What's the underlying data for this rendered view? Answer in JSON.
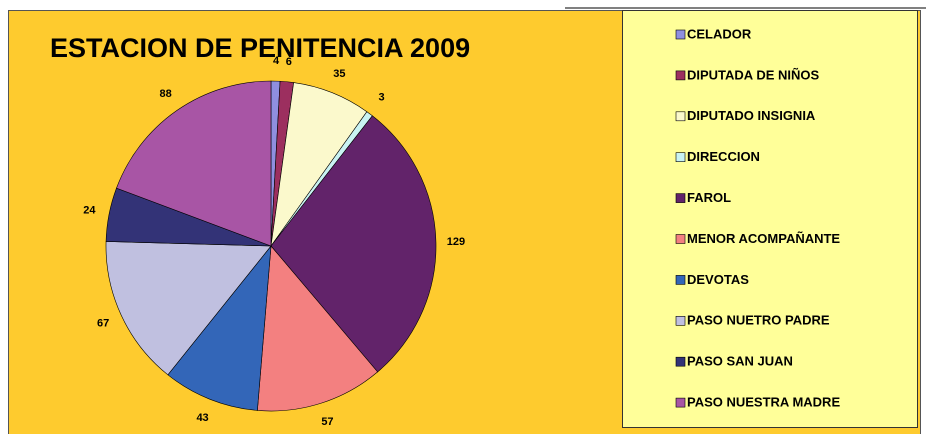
{
  "chart_data": {
    "type": "pie",
    "title": "ESTACION DE PENITENCIA 2009",
    "categories": [
      "CELADOR",
      "DIPUTADA DE NIÑOS",
      "DIPUTADO INSIGNIA",
      "DIRECCION",
      "FAROL",
      "MENOR ACOMPAÑANTE",
      "DEVOTAS",
      "PASO NUETRO PADRE",
      "PASO SAN JUAN",
      "PASO NUESTRA MADRE"
    ],
    "values": [
      4,
      6,
      35,
      3,
      129,
      57,
      43,
      67,
      24,
      88
    ],
    "colors": [
      "#8f8fe0",
      "#9c2f5f",
      "#fbf9cc",
      "#c9f3f3",
      "#62236a",
      "#f38080",
      "#3366b8",
      "#c0c0e0",
      "#333377",
      "#a855a5"
    ],
    "legend": "right"
  }
}
